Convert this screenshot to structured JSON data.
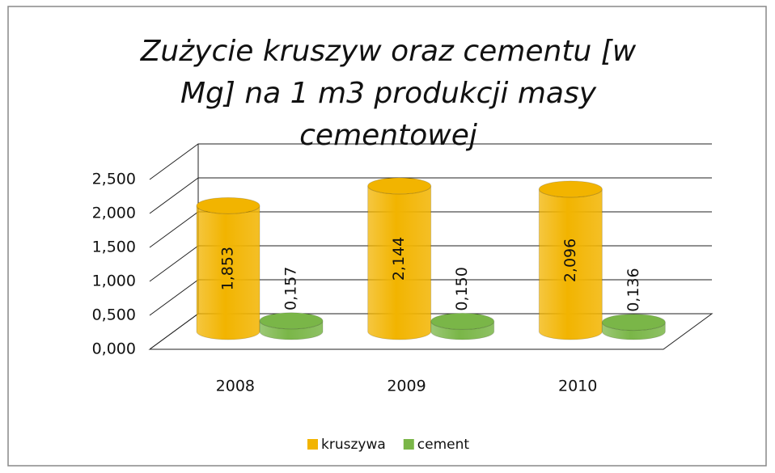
{
  "chart_data": {
    "type": "bar3d",
    "title": "Zużycie kruszyw oraz cementu [w Mg] na 1 m3 produkcji masy cementowej",
    "categories": [
      "2008",
      "2009",
      "2010"
    ],
    "series": [
      {
        "name": "kruszywa",
        "color": "#f2b400",
        "values": [
          1.853,
          2.144,
          2.096
        ],
        "value_labels": [
          "1,853",
          "2,144",
          "2,096"
        ]
      },
      {
        "name": "cement",
        "color": "#7ab648",
        "values": [
          0.157,
          0.15,
          0.136
        ],
        "value_labels": [
          "0,157",
          "0,150",
          "0,136"
        ]
      }
    ],
    "ylim": [
      0,
      2.5
    ],
    "yticks": [
      {
        "value": 0,
        "label": "0,000"
      },
      {
        "value": 0.5,
        "label": "0,500"
      },
      {
        "value": 1,
        "label": "1,000"
      },
      {
        "value": 1.5,
        "label": "1,500"
      },
      {
        "value": 2,
        "label": "2,000"
      },
      {
        "value": 2.5,
        "label": "2,500"
      }
    ],
    "grid": true,
    "legend": "bottom"
  }
}
